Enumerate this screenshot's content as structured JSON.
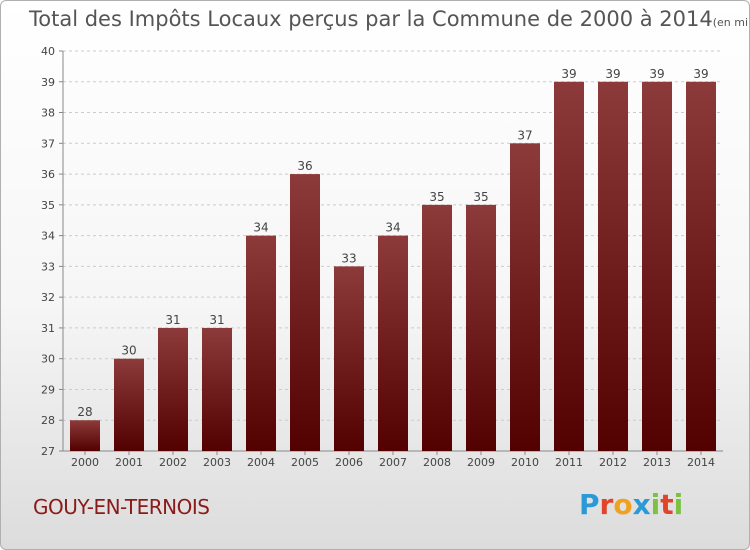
{
  "header": {
    "title": "Total des Impôts Locaux perçus par la Commune de 2000 à 2014",
    "unit": "(en milliers d'€)"
  },
  "footer": {
    "commune": "GOUY-EN-TERNOIS",
    "logo_letters": [
      "P",
      "r",
      "o",
      "x",
      "i",
      "t",
      "i"
    ],
    "logo_colors": [
      "#2a9ad6",
      "#e0452b",
      "#f0a120",
      "#2a9ad6",
      "#7cc242",
      "#e0452b",
      "#7cc242"
    ]
  },
  "colors": {
    "bar_top": "#8c3a3a",
    "bar_bottom": "#520000",
    "grid": "#cccccc",
    "axis_text": "#444444"
  },
  "chart_data": {
    "type": "bar",
    "categories": [
      "2000",
      "2001",
      "2002",
      "2003",
      "2004",
      "2005",
      "2006",
      "2007",
      "2008",
      "2009",
      "2010",
      "2011",
      "2012",
      "2013",
      "2014"
    ],
    "values": [
      28,
      30,
      31,
      31,
      34,
      36,
      33,
      34,
      35,
      35,
      37,
      39,
      39,
      39,
      39
    ],
    "yticks": [
      27,
      28,
      29,
      30,
      31,
      32,
      33,
      34,
      35,
      36,
      37,
      38,
      39,
      40
    ],
    "ylim": [
      27,
      40
    ],
    "grid": true
  }
}
